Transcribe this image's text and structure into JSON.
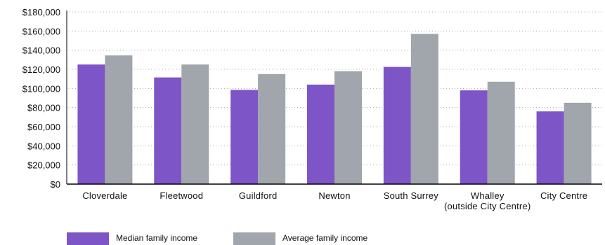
{
  "chart_data": {
    "type": "bar",
    "title": "",
    "xlabel": "",
    "ylabel": "",
    "ylim": [
      0,
      180000
    ],
    "yticks": [
      {
        "value": 0,
        "label": "$0"
      },
      {
        "value": 20000,
        "label": "$20,000"
      },
      {
        "value": 40000,
        "label": "$40,000"
      },
      {
        "value": 60000,
        "label": "$60,000"
      },
      {
        "value": 80000,
        "label": "$80,000"
      },
      {
        "value": 100000,
        "label": "$100,000"
      },
      {
        "value": 120000,
        "label": "$120,000"
      },
      {
        "value": 140000,
        "label": "$140,000"
      },
      {
        "value": 160000,
        "label": "$160,000"
      },
      {
        "value": 180000,
        "label": "$180,000"
      }
    ],
    "grid": "horizontal-dotted",
    "legend_position": "bottom-left",
    "categories": [
      [
        "Cloverdale"
      ],
      [
        "Fleetwood"
      ],
      [
        "Guildford"
      ],
      [
        "Newton"
      ],
      [
        "South Surrey"
      ],
      [
        "Whalley",
        "(outside City Centre)"
      ],
      [
        "City Centre"
      ]
    ],
    "series": [
      {
        "name": "Median family income",
        "color": "#7e55c7",
        "values": [
          125000,
          111500,
          98500,
          104000,
          122500,
          98000,
          76000
        ]
      },
      {
        "name": "Average family income",
        "color": "#a0a6ab",
        "values": [
          134500,
          125000,
          115000,
          118000,
          157000,
          107000,
          85000
        ]
      }
    ]
  }
}
